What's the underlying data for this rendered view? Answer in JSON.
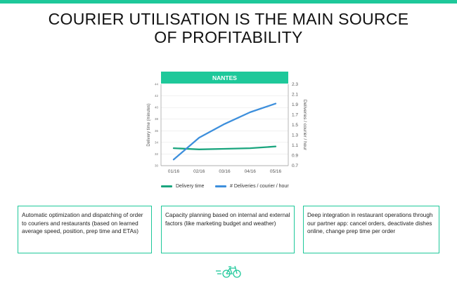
{
  "slide": {
    "title_line1": "COURIER UTILISATION IS THE MAIN SOURCE",
    "title_line2": "OF PROFITABILITY"
  },
  "colors": {
    "accent": "#1ec89a",
    "delivery_time": "#1aa57e",
    "deliveries": "#3d8fdc"
  },
  "chart_data": {
    "type": "line",
    "title": "NANTES",
    "categories": [
      "01/16",
      "02/16",
      "03/16",
      "04/16",
      "05/16"
    ],
    "y_left": {
      "label": "Delivery time (minutes)",
      "range": [
        30,
        44
      ],
      "ticks": [
        "30",
        "32",
        "34",
        "36",
        "38",
        "40",
        "42",
        "44"
      ]
    },
    "y_right": {
      "label": "Deliveries / courier / hour",
      "range": [
        0.7,
        2.3
      ],
      "ticks": [
        "0.7",
        "0.9",
        "1.1",
        "1.3",
        "1.5",
        "1.7",
        "1.9",
        "2.1",
        "2.3"
      ]
    },
    "series": [
      {
        "name": "Delivery time",
        "axis": "left",
        "values": [
          33.0,
          32.8,
          32.9,
          33.0,
          33.3
        ]
      },
      {
        "name": "# Deliveries / courier / hour",
        "axis": "right",
        "values": [
          0.82,
          1.25,
          1.52,
          1.75,
          1.92
        ]
      }
    ],
    "grid": true,
    "legend_position": "bottom"
  },
  "boxes": [
    {
      "text": "Automatic optimization and dispatching of order to couriers and restaurants (based on learned average speed, position, prep time and ETAs)"
    },
    {
      "text": "Capacity planning based on internal and external factors (like marketing budget and weather)"
    },
    {
      "text": "Deep integration in restaurant operations through our partner app: cancel orders, deactivate dishes online, change prep time per order"
    }
  ],
  "logo": {
    "icon": "bike-icon"
  }
}
